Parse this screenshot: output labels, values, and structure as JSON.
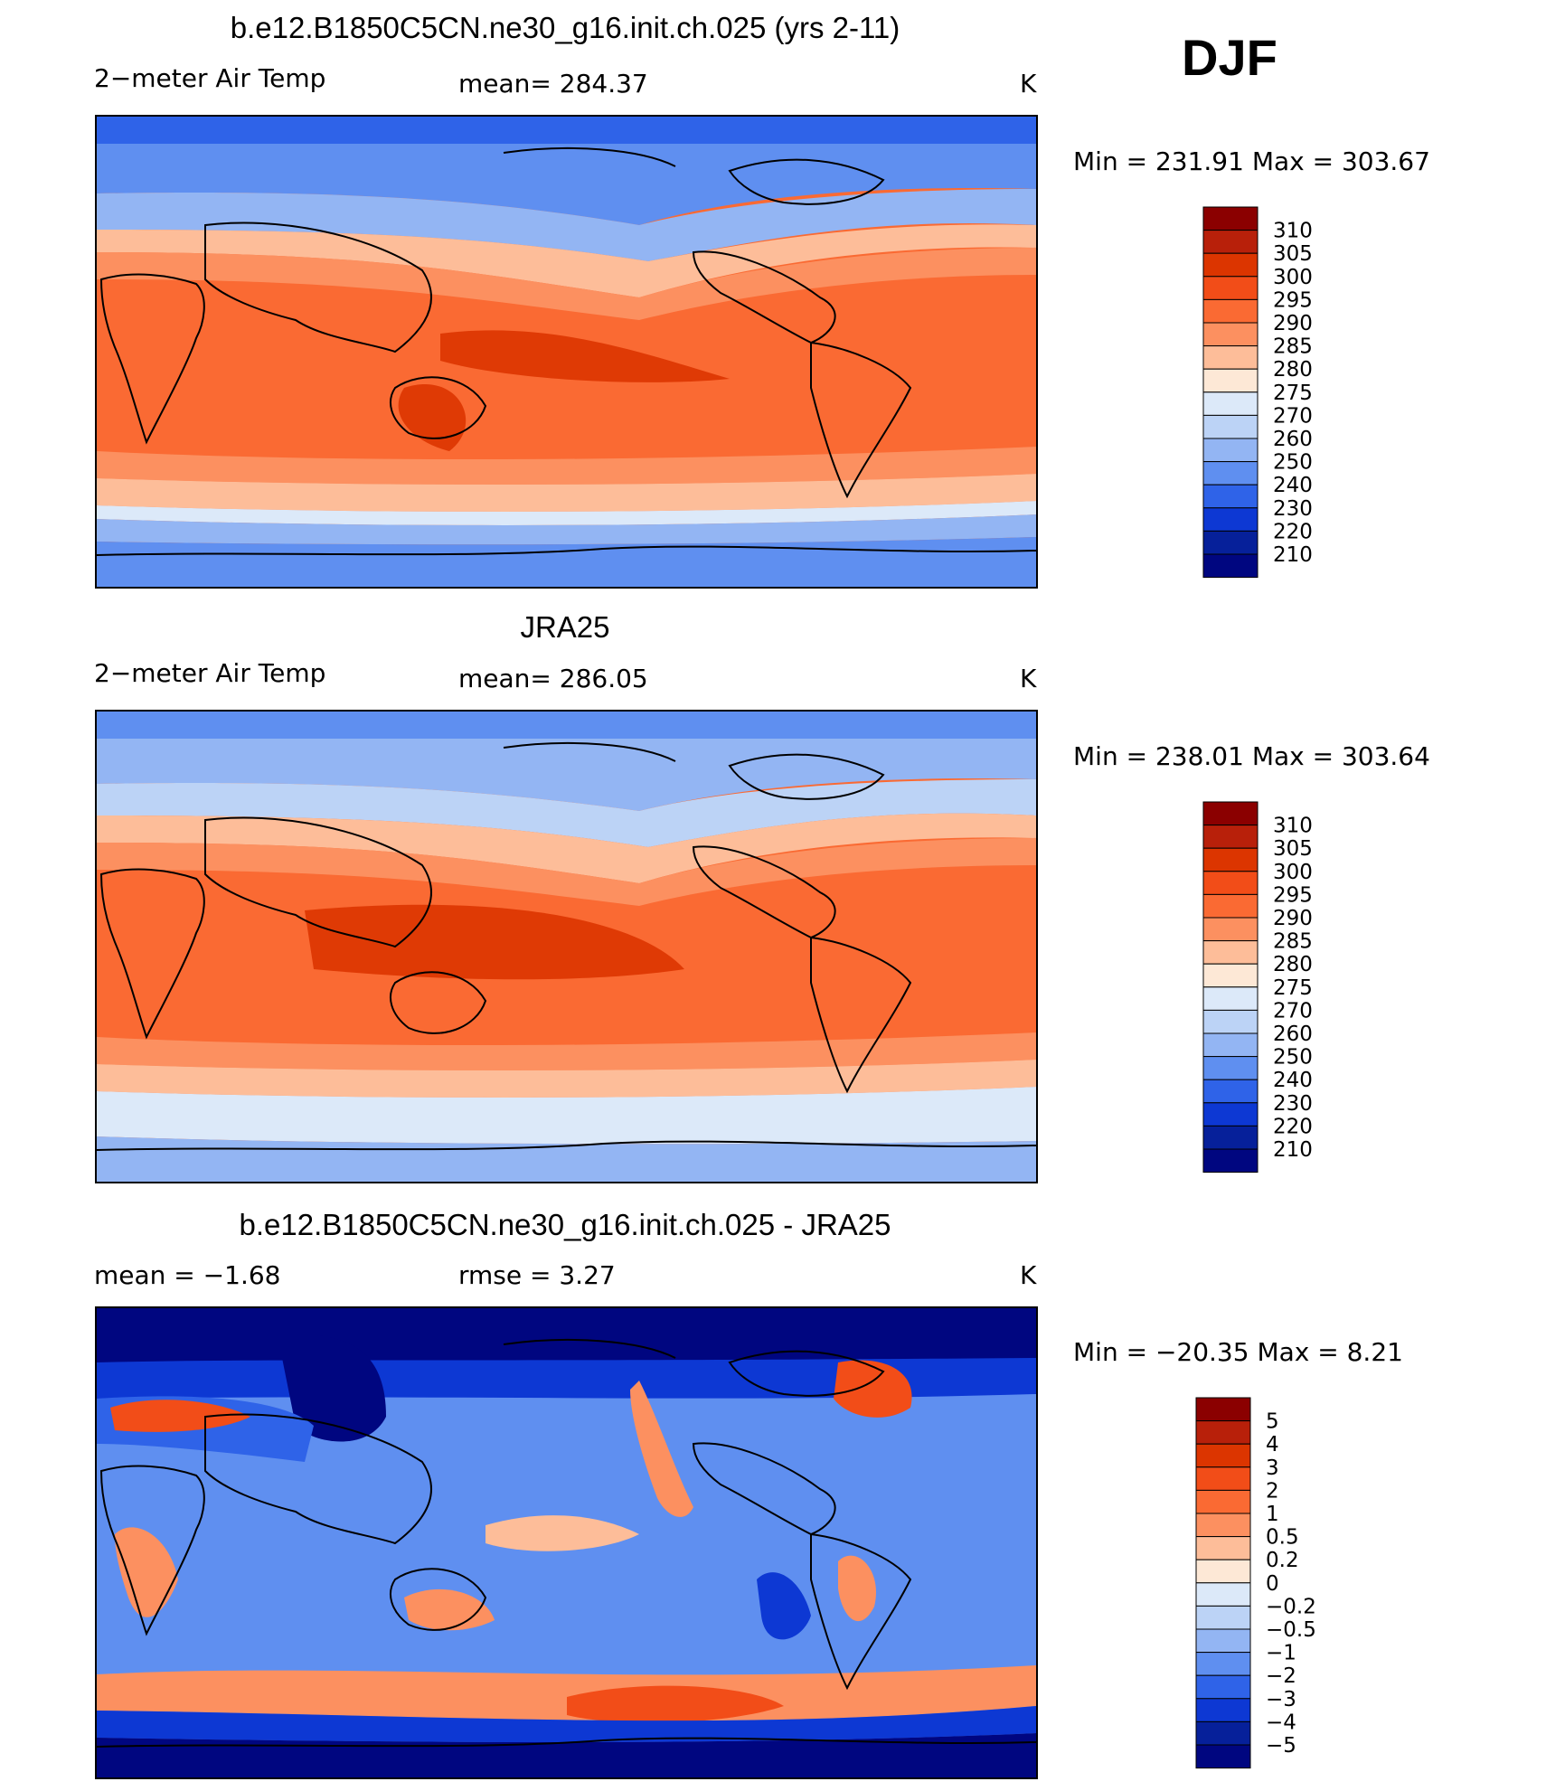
{
  "season": "DJF",
  "panels": [
    {
      "id": "model",
      "title": "b.e12.B1850C5CN.ne30_g16.init.ch.025 (yrs 2-11)",
      "left_label": "2−meter Air Temp",
      "middle_label": "mean=  284.37",
      "units": "K",
      "minmax": "Min  =  231.91  Max  =  303.67"
    },
    {
      "id": "obs",
      "title": "JRA25",
      "left_label": "2−meter Air Temp",
      "middle_label": "mean=  286.05",
      "units": "K",
      "minmax": "Min  =  238.01  Max  =  303.64"
    },
    {
      "id": "diff",
      "title": "b.e12.B1850C5CN.ne30_g16.init.ch.025 - JRA25",
      "left_label": "mean  =    −1.68",
      "middle_label": "rmse  =      3.27",
      "units": "K",
      "minmax": "Min  =  −20.35  Max  =      8.21"
    }
  ],
  "colorbars": {
    "temperature": {
      "labels": [
        "310",
        "305",
        "300",
        "295",
        "290",
        "285",
        "280",
        "275",
        "270",
        "260",
        "250",
        "240",
        "230",
        "220",
        "210"
      ],
      "colors": [
        "#8b0000",
        "#b8200a",
        "#dc3500",
        "#f24d18",
        "#fa6a33",
        "#fc9060",
        "#fdbd99",
        "#fde8d6",
        "#dce9f9",
        "#bcd3f6",
        "#93b5f3",
        "#5f8ff0",
        "#2f63e8",
        "#0d38d3",
        "#06209a",
        "#000680"
      ]
    },
    "difference": {
      "labels": [
        "5",
        "4",
        "3",
        "2",
        "1",
        "0.5",
        "0.2",
        "0",
        "−0.2",
        "−0.5",
        "−1",
        "−2",
        "−3",
        "−4",
        "−5"
      ],
      "colors": [
        "#8b0000",
        "#b8200a",
        "#dc3500",
        "#f24d18",
        "#fa6a33",
        "#fc9060",
        "#fdbd99",
        "#fde8d6",
        "#dce9f9",
        "#bcd3f6",
        "#93b5f3",
        "#5f8ff0",
        "#2f63e8",
        "#0d38d3",
        "#06209a",
        "#000680"
      ]
    }
  }
}
